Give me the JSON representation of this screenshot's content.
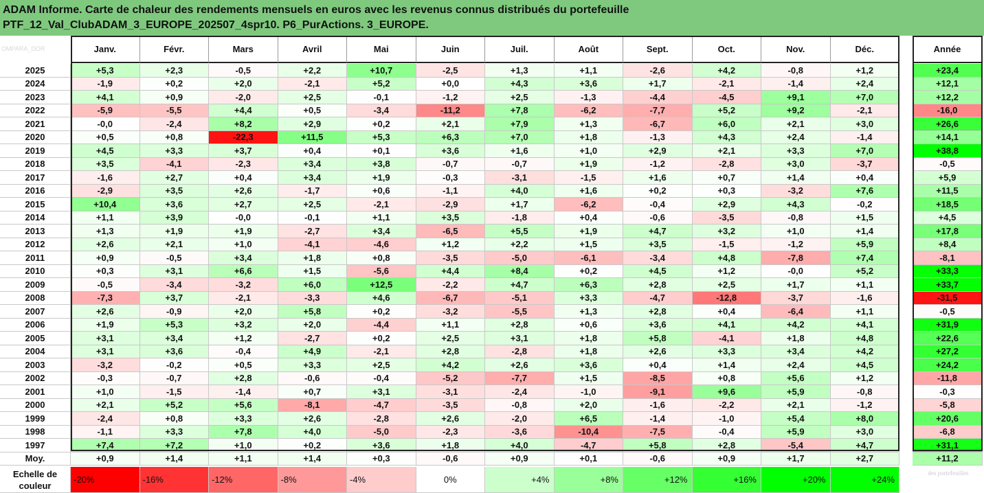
{
  "title_line1": "ADAM Informe. Carte de chaleur des rendements mensuels en euros avec les revenus connus distribués du portefeuille",
  "title_line2": "PTF_12_Val_ClubADAM_3_EUROPE_202507_4spr10. P6_PurActions. 3_EUROPE.",
  "watermark_topleft": "OMPARA_DOR",
  "watermark_bottomright": "des portefeuilles",
  "colors": {
    "title_bg": "#7fc97f",
    "negative": "#ff0000",
    "neutral": "#ffffff",
    "positive": "#00ff00"
  },
  "chart_data": {
    "type": "heatmap",
    "columns": [
      "Janv.",
      "Févr.",
      "Mars",
      "Avril",
      "Mai",
      "Juin",
      "Juil.",
      "Août",
      "Sept.",
      "Oct.",
      "Nov.",
      "Déc."
    ],
    "year_column": "Année",
    "rows": [
      {
        "label": "2025",
        "values": [
          "+5,3",
          "+2,3",
          "-0,5",
          "+2,2",
          "+10,7",
          "-2,5",
          "+1,3",
          "+1,1",
          "-2,6",
          "+4,2",
          "-0,8",
          "+1,2"
        ],
        "year": "+23,4"
      },
      {
        "label": "2024",
        "values": [
          "-1,9",
          "+0,2",
          "+2,0",
          "-2,1",
          "+5,2",
          "+0,0",
          "+4,3",
          "+3,6",
          "+1,7",
          "-2,1",
          "-1,4",
          "+2,4"
        ],
        "year": "+12,1"
      },
      {
        "label": "2023",
        "values": [
          "+4,1",
          "+0,9",
          "-2,0",
          "+2,5",
          "-0,1",
          "-1,2",
          "+2,5",
          "-1,3",
          "-4,4",
          "-4,5",
          "+9,1",
          "+7,0"
        ],
        "year": "+12,2"
      },
      {
        "label": "2022",
        "values": [
          "-5,9",
          "-5,5",
          "+4,4",
          "+0,5",
          "-3,4",
          "-11,2",
          "+7,8",
          "-6,2",
          "-7,7",
          "+5,2",
          "+9,2",
          "-2,1"
        ],
        "year": "-16,0"
      },
      {
        "label": "2021",
        "values": [
          "-0,0",
          "-2,4",
          "+8,2",
          "+2,9",
          "+0,2",
          "+2,1",
          "+7,9",
          "+1,3",
          "-6,7",
          "+6,0",
          "+2,1",
          "+3,0"
        ],
        "year": "+26,6"
      },
      {
        "label": "2020",
        "values": [
          "+0,5",
          "+0,8",
          "-22,3",
          "+11,5",
          "+5,3",
          "+6,3",
          "+7,0",
          "+1,8",
          "-1,3",
          "+4,3",
          "+2,4",
          "-1,4"
        ],
        "year": "+14,1"
      },
      {
        "label": "2019",
        "values": [
          "+4,5",
          "+3,3",
          "+3,7",
          "+0,4",
          "+0,1",
          "+3,6",
          "+1,6",
          "+1,0",
          "+2,9",
          "+2,1",
          "+3,3",
          "+7,0"
        ],
        "year": "+38,8"
      },
      {
        "label": "2018",
        "values": [
          "+3,5",
          "-4,1",
          "-2,3",
          "+3,4",
          "+3,8",
          "-0,7",
          "-0,7",
          "+1,9",
          "-1,2",
          "-2,8",
          "+3,0",
          "-3,7"
        ],
        "year": "-0,5"
      },
      {
        "label": "2017",
        "values": [
          "-1,6",
          "+2,7",
          "+0,4",
          "+3,4",
          "+1,9",
          "-0,3",
          "-3,1",
          "-1,5",
          "+1,6",
          "+0,7",
          "+1,4",
          "+0,4"
        ],
        "year": "+5,9"
      },
      {
        "label": "2016",
        "values": [
          "-2,9",
          "+3,5",
          "+2,6",
          "-1,7",
          "+0,6",
          "-1,1",
          "+4,0",
          "+1,6",
          "+0,2",
          "+0,3",
          "-3,2",
          "+7,6"
        ],
        "year": "+11,5"
      },
      {
        "label": "2015",
        "values": [
          "+10,4",
          "+3,6",
          "+2,7",
          "+2,5",
          "-2,1",
          "-2,9",
          "+1,7",
          "-6,2",
          "-0,4",
          "+2,9",
          "+4,3",
          "-0,2"
        ],
        "year": "+18,5"
      },
      {
        "label": "2014",
        "values": [
          "+1,1",
          "+3,9",
          "-0,0",
          "-0,1",
          "+1,1",
          "+3,5",
          "-1,8",
          "+0,4",
          "-0,6",
          "-3,5",
          "-0,8",
          "+1,5"
        ],
        "year": "+4,5"
      },
      {
        "label": "2013",
        "values": [
          "+1,3",
          "+1,9",
          "+1,9",
          "-2,7",
          "+3,4",
          "-6,5",
          "+5,5",
          "+1,9",
          "+4,7",
          "+3,2",
          "+1,0",
          "+1,4"
        ],
        "year": "+17,8"
      },
      {
        "label": "2012",
        "values": [
          "+2,6",
          "+2,1",
          "+1,0",
          "-4,1",
          "-4,6",
          "+1,2",
          "+2,2",
          "+1,5",
          "+3,5",
          "-1,5",
          "-1,2",
          "+5,9"
        ],
        "year": "+8,4"
      },
      {
        "label": "2011",
        "values": [
          "+0,9",
          "-0,5",
          "+3,4",
          "+1,8",
          "+0,8",
          "-3,5",
          "-5,0",
          "-6,1",
          "-3,4",
          "+4,8",
          "-7,8",
          "+7,4"
        ],
        "year": "-8,1"
      },
      {
        "label": "2010",
        "values": [
          "+0,3",
          "+3,1",
          "+6,6",
          "+1,5",
          "-5,6",
          "+4,4",
          "+8,4",
          "+0,2",
          "+4,5",
          "+1,2",
          "-0,0",
          "+5,2"
        ],
        "year": "+33,3"
      },
      {
        "label": "2009",
        "values": [
          "-0,5",
          "-3,4",
          "-3,2",
          "+6,0",
          "+12,5",
          "-2,2",
          "+4,7",
          "+6,3",
          "+2,8",
          "+2,5",
          "+1,7",
          "+1,1"
        ],
        "year": "+33,7"
      },
      {
        "label": "2008",
        "values": [
          "-7,3",
          "+3,7",
          "-2,1",
          "-3,3",
          "+4,6",
          "-6,7",
          "-5,1",
          "+3,3",
          "-4,7",
          "-12,8",
          "-3,7",
          "-1,6"
        ],
        "year": "-31,5"
      },
      {
        "label": "2007",
        "values": [
          "+2,6",
          "-0,9",
          "+2,0",
          "+5,8",
          "+0,2",
          "-3,2",
          "-5,5",
          "+1,3",
          "+2,8",
          "+0,4",
          "-6,4",
          "+1,1"
        ],
        "year": "-0,5"
      },
      {
        "label": "2006",
        "values": [
          "+1,9",
          "+5,3",
          "+3,2",
          "+2,0",
          "-4,4",
          "+1,1",
          "+2,8",
          "+0,6",
          "+3,6",
          "+4,1",
          "+4,2",
          "+4,1"
        ],
        "year": "+31,9"
      },
      {
        "label": "2005",
        "values": [
          "+3,1",
          "+3,4",
          "+1,2",
          "-2,7",
          "+0,2",
          "+2,5",
          "+3,1",
          "+1,8",
          "+5,8",
          "-4,1",
          "+1,8",
          "+4,8"
        ],
        "year": "+22,6"
      },
      {
        "label": "2004",
        "values": [
          "+3,1",
          "+3,6",
          "-0,4",
          "+4,9",
          "-2,1",
          "+2,8",
          "-2,8",
          "+1,8",
          "+2,6",
          "+3,3",
          "+3,4",
          "+4,2"
        ],
        "year": "+27,2"
      },
      {
        "label": "2003",
        "values": [
          "-3,2",
          "-0,2",
          "+0,5",
          "+3,3",
          "+2,5",
          "+4,2",
          "+2,6",
          "+3,6",
          "+0,4",
          "+1,4",
          "+2,4",
          "+4,5"
        ],
        "year": "+24,2"
      },
      {
        "label": "2002",
        "values": [
          "-0,3",
          "-0,7",
          "+2,8",
          "-0,6",
          "-0,4",
          "-5,2",
          "-7,7",
          "+1,5",
          "-8,5",
          "+0,8",
          "+5,6",
          "+1,2"
        ],
        "year": "-11,8"
      },
      {
        "label": "2001",
        "values": [
          "+1,0",
          "-1,5",
          "-1,4",
          "+0,7",
          "+3,1",
          "-3,1",
          "-2,4",
          "-1,0",
          "-9,1",
          "+9,6",
          "+5,9",
          "-0,8"
        ],
        "year": "-0,3"
      },
      {
        "label": "2000",
        "values": [
          "+2,1",
          "+5,2",
          "+5,6",
          "-8,1",
          "-4,7",
          "-3,5",
          "-0,8",
          "+2,0",
          "-1,6",
          "-2,2",
          "+2,1",
          "-1,2"
        ],
        "year": "-5,8"
      },
      {
        "label": "1999",
        "values": [
          "-2,4",
          "+0,8",
          "+3,3",
          "+2,6",
          "-2,8",
          "+2,6",
          "-2,0",
          "+6,5",
          "-1,4",
          "-1,0",
          "+5,4",
          "+8,0"
        ],
        "year": "+20,6"
      },
      {
        "label": "1998",
        "values": [
          "-1,1",
          "+3,3",
          "+7,8",
          "+4,0",
          "-5,0",
          "-2,3",
          "-3,6",
          "-10,4",
          "-7,5",
          "-0,4",
          "+5,9",
          "+3,0"
        ],
        "year": "-6,8"
      },
      {
        "label": "1997",
        "values": [
          "+7,4",
          "+7,2",
          "+1,0",
          "+0,2",
          "+3,6",
          "+1,8",
          "+4,0",
          "-4,7",
          "+5,8",
          "+2,8",
          "-5,4",
          "+4,7"
        ],
        "year": "+31,1"
      }
    ],
    "average_row": {
      "label": "Moy.",
      "values": [
        "+0,9",
        "+1,4",
        "+1,1",
        "+1,4",
        "+0,3",
        "-0,6",
        "+0,9",
        "+0,1",
        "-0,6",
        "+0,9",
        "+1,7",
        "+2,7"
      ],
      "year": "+11,2"
    },
    "scale": {
      "label": "Echelle de couleur",
      "values": [
        "-20%",
        "-16%",
        "-12%",
        "-8%",
        "-4%",
        "0%",
        "+4%",
        "+8%",
        "+12%",
        "+16%",
        "+20%",
        "+24%"
      ]
    }
  }
}
